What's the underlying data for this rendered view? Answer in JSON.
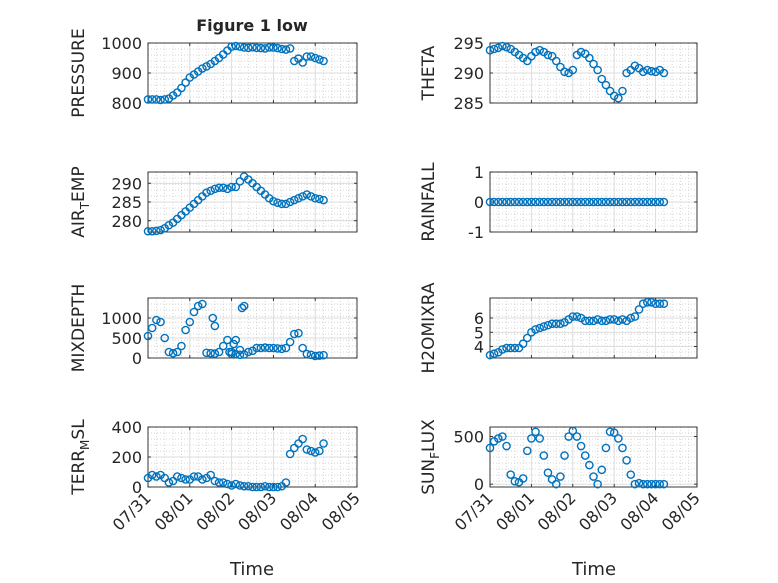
{
  "figure": {
    "title": "Figure 1 low",
    "xlabel": "Time",
    "xticks": [
      "07/31",
      "08/01",
      "08/02",
      "08/03",
      "08/04",
      "08/05"
    ],
    "marker_color": "#0072BD"
  },
  "chart_data": [
    {
      "type": "scatter",
      "title": "Figure 1 low",
      "ylabel": "PRESSURE",
      "ylim": [
        800,
        1000
      ],
      "yticks": [
        800,
        900,
        1000
      ],
      "xlabel": "",
      "xlim": [
        0,
        5
      ],
      "x": [
        0.0,
        0.1,
        0.2,
        0.3,
        0.4,
        0.5,
        0.6,
        0.7,
        0.8,
        0.9,
        1.0,
        1.1,
        1.2,
        1.3,
        1.4,
        1.5,
        1.6,
        1.7,
        1.8,
        1.9,
        2.0,
        2.1,
        2.2,
        2.3,
        2.4,
        2.5,
        2.6,
        2.7,
        2.8,
        2.9,
        3.0,
        3.1,
        3.2,
        3.3,
        3.4,
        3.5,
        3.6,
        3.7,
        3.8,
        3.9,
        4.0,
        4.1,
        4.2
      ],
      "y": [
        812,
        812,
        812,
        810,
        812,
        815,
        825,
        835,
        850,
        868,
        885,
        895,
        905,
        915,
        922,
        930,
        940,
        950,
        962,
        975,
        988,
        990,
        988,
        985,
        984,
        986,
        984,
        983,
        982,
        985,
        985,
        983,
        980,
        978,
        982,
        940,
        948,
        935,
        955,
        955,
        950,
        945,
        940
      ]
    },
    {
      "type": "scatter",
      "ylabel": "THETA",
      "ylim": [
        285,
        295
      ],
      "yticks": [
        285,
        290,
        295
      ],
      "xlim": [
        0,
        5
      ],
      "x": [
        0.0,
        0.1,
        0.2,
        0.3,
        0.4,
        0.5,
        0.6,
        0.7,
        0.8,
        0.9,
        1.0,
        1.1,
        1.2,
        1.3,
        1.4,
        1.5,
        1.6,
        1.7,
        1.8,
        1.9,
        2.0,
        2.1,
        2.2,
        2.3,
        2.4,
        2.5,
        2.6,
        2.7,
        2.8,
        2.9,
        3.0,
        3.1,
        3.2,
        3.3,
        3.4,
        3.5,
        3.6,
        3.7,
        3.8,
        3.9,
        4.0,
        4.1,
        4.2
      ],
      "y": [
        293.8,
        294.0,
        294.2,
        294.5,
        294.3,
        294.0,
        293.5,
        293.0,
        292.5,
        292.0,
        292.8,
        293.5,
        293.8,
        293.5,
        293.0,
        292.8,
        292.0,
        291.0,
        290.2,
        290.0,
        290.5,
        293.0,
        293.5,
        293.2,
        292.5,
        291.5,
        290.5,
        289.0,
        288.0,
        287.0,
        286.2,
        285.8,
        287.0,
        290.0,
        290.5,
        291.2,
        290.8,
        290.2,
        290.5,
        290.3,
        290.2,
        290.5,
        290.0
      ]
    },
    {
      "type": "scatter",
      "ylabel": "AIR_TEMP",
      "ylim": [
        277,
        293
      ],
      "yticks": [
        280,
        285,
        290
      ],
      "xlim": [
        0,
        5
      ],
      "x": [
        0.0,
        0.1,
        0.2,
        0.3,
        0.4,
        0.5,
        0.6,
        0.7,
        0.8,
        0.9,
        1.0,
        1.1,
        1.2,
        1.3,
        1.4,
        1.5,
        1.6,
        1.7,
        1.8,
        1.9,
        2.0,
        2.1,
        2.2,
        2.3,
        2.4,
        2.5,
        2.6,
        2.7,
        2.8,
        2.9,
        3.0,
        3.1,
        3.2,
        3.3,
        3.4,
        3.5,
        3.6,
        3.7,
        3.8,
        3.9,
        4.0,
        4.1,
        4.2
      ],
      "y": [
        277.2,
        277.2,
        277.3,
        277.5,
        278.0,
        278.8,
        279.5,
        280.5,
        281.5,
        282.5,
        283.5,
        284.5,
        285.5,
        286.5,
        287.5,
        288.0,
        288.5,
        288.8,
        288.8,
        288.5,
        289.0,
        289.0,
        290.5,
        291.8,
        291.0,
        290.0,
        289.0,
        288.0,
        287.0,
        286.0,
        285.2,
        284.8,
        284.5,
        284.5,
        285.0,
        285.5,
        286.0,
        286.5,
        287.0,
        286.5,
        286.0,
        285.8,
        285.5
      ]
    },
    {
      "type": "scatter",
      "ylabel": "RAINFALL",
      "ylim": [
        -1,
        1
      ],
      "yticks": [
        -1,
        0,
        1
      ],
      "xlim": [
        0,
        5
      ],
      "x": [
        0.0,
        0.1,
        0.2,
        0.3,
        0.4,
        0.5,
        0.6,
        0.7,
        0.8,
        0.9,
        1.0,
        1.1,
        1.2,
        1.3,
        1.4,
        1.5,
        1.6,
        1.7,
        1.8,
        1.9,
        2.0,
        2.1,
        2.2,
        2.3,
        2.4,
        2.5,
        2.6,
        2.7,
        2.8,
        2.9,
        3.0,
        3.1,
        3.2,
        3.3,
        3.4,
        3.5,
        3.6,
        3.7,
        3.8,
        3.9,
        4.0,
        4.1,
        4.2
      ],
      "y": [
        0,
        0,
        0,
        0,
        0,
        0,
        0,
        0,
        0,
        0,
        0,
        0,
        0,
        0,
        0,
        0,
        0,
        0,
        0,
        0,
        0,
        0,
        0,
        0,
        0,
        0,
        0,
        0,
        0,
        0,
        0,
        0,
        0,
        0,
        0,
        0,
        0,
        0,
        0,
        0,
        0,
        0,
        0
      ]
    },
    {
      "type": "scatter",
      "ylabel": "MIXDEPTH",
      "ylim": [
        0,
        1500
      ],
      "yticks": [
        0,
        500,
        1000
      ],
      "xlim": [
        0,
        5
      ],
      "x": [
        0.0,
        0.1,
        0.2,
        0.3,
        0.4,
        0.5,
        0.6,
        0.7,
        0.8,
        0.9,
        1.0,
        1.1,
        1.2,
        1.3,
        1.4,
        1.5,
        1.6,
        1.7,
        1.8,
        1.9,
        2.0,
        2.1,
        2.2,
        2.3,
        2.4,
        2.5,
        2.6,
        2.7,
        2.8,
        2.9,
        3.0,
        3.1,
        3.2,
        3.3,
        3.4,
        3.5,
        3.6,
        3.7,
        3.8,
        3.9,
        4.0,
        4.1,
        4.2,
        1.55,
        1.6,
        1.95,
        2.0,
        2.05,
        2.1,
        2.2,
        2.25,
        2.3
      ],
      "y": [
        550,
        750,
        950,
        900,
        500,
        150,
        120,
        150,
        300,
        700,
        900,
        1150,
        1300,
        1350,
        130,
        120,
        110,
        150,
        300,
        450,
        150,
        100,
        80,
        90,
        150,
        180,
        250,
        250,
        260,
        250,
        250,
        240,
        230,
        250,
        400,
        600,
        620,
        250,
        100,
        80,
        50,
        60,
        70,
        1000,
        800,
        150,
        100,
        350,
        450,
        200,
        1250,
        1300
      ]
    },
    {
      "type": "scatter",
      "ylabel": "H2OMIXRA",
      "ylim": [
        3.2,
        7.4
      ],
      "yticks": [
        4,
        5,
        6
      ],
      "xlim": [
        0,
        5
      ],
      "x": [
        0.0,
        0.1,
        0.2,
        0.3,
        0.4,
        0.5,
        0.6,
        0.7,
        0.8,
        0.9,
        1.0,
        1.1,
        1.2,
        1.3,
        1.4,
        1.5,
        1.6,
        1.7,
        1.8,
        1.9,
        2.0,
        2.1,
        2.2,
        2.3,
        2.4,
        2.5,
        2.6,
        2.7,
        2.8,
        2.9,
        3.0,
        3.1,
        3.2,
        3.3,
        3.4,
        3.5,
        3.6,
        3.7,
        3.8,
        3.9,
        4.0,
        4.1,
        4.2
      ],
      "y": [
        3.4,
        3.5,
        3.6,
        3.8,
        3.9,
        3.9,
        3.9,
        3.9,
        4.2,
        4.6,
        5.0,
        5.2,
        5.3,
        5.4,
        5.5,
        5.6,
        5.6,
        5.6,
        5.7,
        5.9,
        6.1,
        6.1,
        6.0,
        5.8,
        5.8,
        5.8,
        5.9,
        5.8,
        5.8,
        5.9,
        5.9,
        5.8,
        5.9,
        5.8,
        6.0,
        6.1,
        6.6,
        7.0,
        7.1,
        7.1,
        7.0,
        7.0,
        7.0
      ]
    },
    {
      "type": "scatter",
      "ylabel": "TERR_MSL",
      "ylim": [
        0,
        400
      ],
      "yticks": [
        0,
        200,
        400
      ],
      "xlim": [
        0,
        5
      ],
      "x": [
        0.0,
        0.1,
        0.2,
        0.3,
        0.4,
        0.5,
        0.6,
        0.7,
        0.8,
        0.9,
        1.0,
        1.1,
        1.2,
        1.3,
        1.4,
        1.5,
        1.6,
        1.7,
        1.8,
        1.9,
        2.0,
        2.1,
        2.2,
        2.3,
        2.4,
        2.5,
        2.6,
        2.7,
        2.8,
        2.9,
        3.0,
        3.1,
        3.2,
        3.3,
        3.4,
        3.5,
        3.6,
        3.7,
        3.8,
        3.9,
        4.0,
        4.1,
        4.2
      ],
      "y": [
        60,
        80,
        70,
        80,
        60,
        30,
        40,
        70,
        60,
        50,
        50,
        70,
        70,
        50,
        60,
        80,
        40,
        30,
        30,
        20,
        10,
        20,
        10,
        5,
        5,
        0,
        0,
        0,
        5,
        0,
        0,
        0,
        5,
        30,
        220,
        260,
        290,
        320,
        250,
        240,
        230,
        240,
        290
      ]
    },
    {
      "type": "scatter",
      "ylabel": "SUN_FLUX",
      "ylim": [
        -30,
        600
      ],
      "yticks": [
        0,
        500
      ],
      "xlim": [
        0,
        5
      ],
      "x": [
        0.0,
        0.1,
        0.2,
        0.3,
        0.4,
        0.5,
        0.6,
        0.7,
        0.8,
        0.9,
        1.0,
        1.1,
        1.2,
        1.3,
        1.4,
        1.5,
        1.6,
        1.7,
        1.8,
        1.9,
        2.0,
        2.1,
        2.2,
        2.3,
        2.4,
        2.5,
        2.6,
        2.7,
        2.8,
        2.9,
        3.0,
        3.1,
        3.2,
        3.3,
        3.4,
        3.5,
        3.6,
        3.7,
        3.8,
        3.9,
        4.0,
        4.1,
        4.2
      ],
      "y": [
        380,
        450,
        480,
        500,
        400,
        100,
        30,
        20,
        60,
        350,
        480,
        550,
        480,
        300,
        120,
        50,
        0,
        80,
        300,
        500,
        560,
        500,
        400,
        300,
        200,
        80,
        0,
        150,
        380,
        550,
        540,
        480,
        380,
        250,
        100,
        0,
        10,
        0,
        0,
        0,
        0,
        0,
        0
      ]
    }
  ]
}
